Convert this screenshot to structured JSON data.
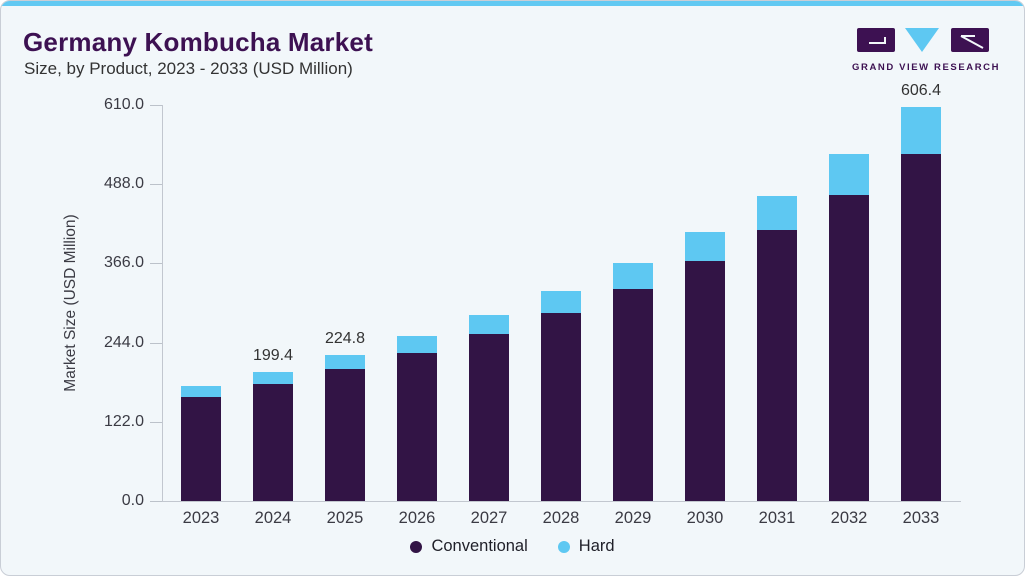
{
  "header": {
    "title": "Germany Kombucha Market",
    "subtitle": "Size, by Product, 2023 - 2033 (USD Million)",
    "logo_text": "GRAND VIEW RESEARCH"
  },
  "colors": {
    "accent_strip": "#62c9f2",
    "card_background": "#f2f7fa",
    "title_purple": "#3d1152",
    "conventional": "#321445",
    "hard": "#5ec8f2",
    "axis_text": "#3b3b44",
    "axis_line": "#c2c7cf"
  },
  "chart_data": {
    "type": "bar",
    "stacked": true,
    "title": "Germany Kombucha Market Size, by Product, 2023 - 2033 (USD Million)",
    "categories": [
      "2023",
      "2024",
      "2025",
      "2026",
      "2027",
      "2028",
      "2029",
      "2030",
      "2031",
      "2032",
      "2033"
    ],
    "series": [
      {
        "name": "Conventional",
        "color": "#321445",
        "values": [
          160.9,
          179.5,
          202.6,
          228.5,
          257.9,
          290.0,
          327.0,
          369.5,
          417.5,
          471.5,
          534.5
        ]
      },
      {
        "name": "Hard",
        "color": "#5ec8f2",
        "values": [
          15.5,
          19.9,
          22.2,
          24.9,
          28.2,
          34.0,
          40.0,
          45.5,
          52.5,
          63.0,
          71.9
        ]
      }
    ],
    "totals": [
      176.4,
      199.4,
      224.8,
      253.4,
      286.1,
      324.0,
      367.0,
      415.0,
      470.0,
      534.5,
      606.4
    ],
    "value_labels": [
      "",
      "199.4",
      "224.8",
      "",
      "",
      "",
      "",
      "",
      "",
      "",
      "606.4"
    ],
    "xlabel": "",
    "ylabel": "Market Size (USD Million)",
    "ylim": [
      0,
      610
    ],
    "yticks": [
      0,
      122,
      244,
      366,
      488,
      610
    ],
    "ytick_labels": [
      "0.0",
      "122.0",
      "244.0",
      "366.0",
      "488.0",
      "610.0"
    ],
    "grid": false,
    "legend_position": "bottom"
  },
  "legend": {
    "items": [
      {
        "label": "Conventional",
        "color": "#321445"
      },
      {
        "label": "Hard",
        "color": "#5ec8f2"
      }
    ]
  }
}
